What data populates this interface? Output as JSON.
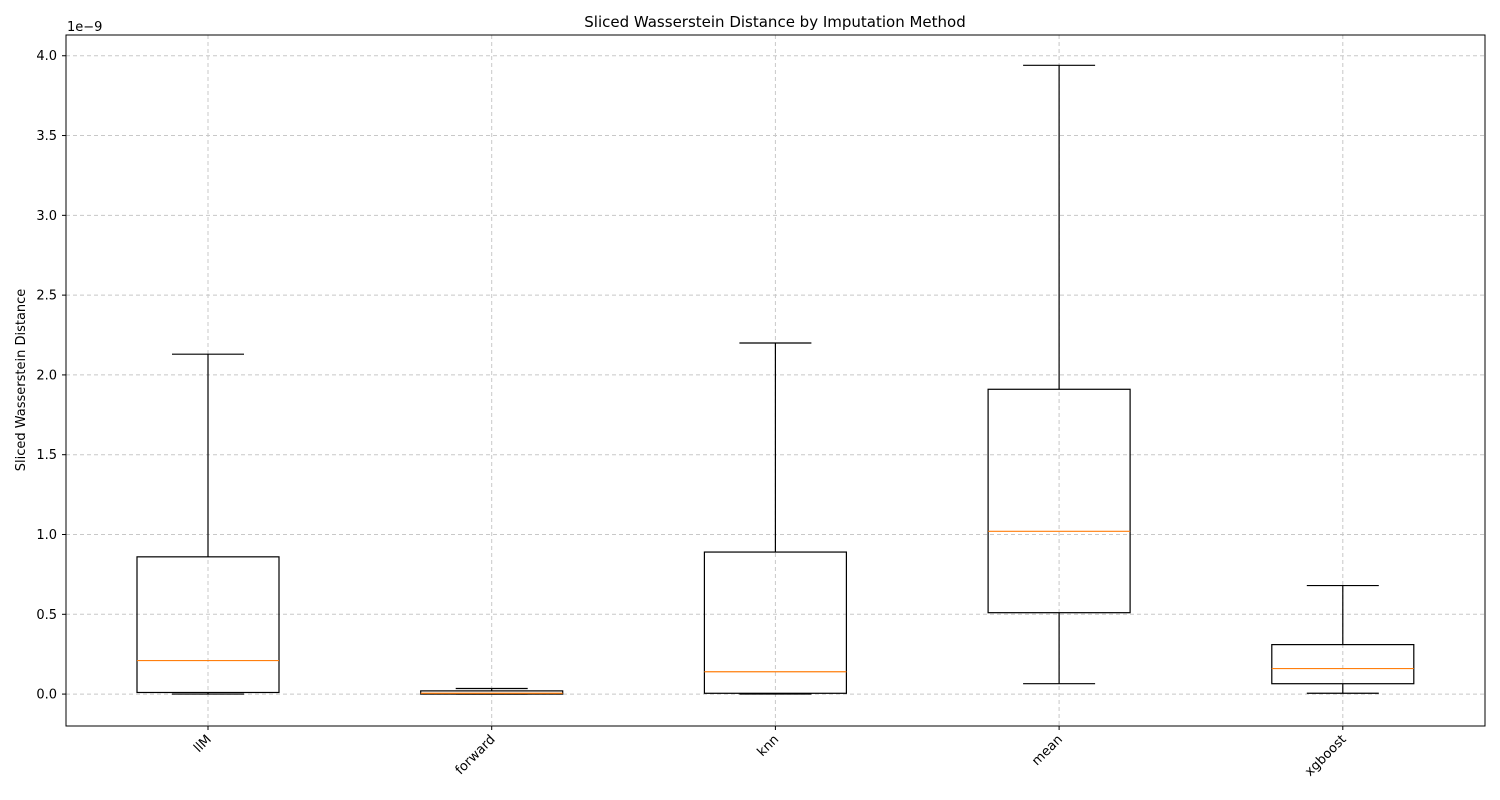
{
  "chart_data": {
    "type": "boxplot",
    "title": "Sliced Wasserstein Distance by Imputation Method",
    "xlabel": "",
    "ylabel": "Sliced Wasserstein Distance",
    "y_scale_label": "1e−9",
    "ylim": [
      -0.2,
      4.13
    ],
    "grid": true,
    "categories": [
      "llM",
      "forward",
      "knn",
      "mean",
      "xgboost"
    ],
    "boxes": [
      {
        "category": "llM",
        "whisker_low": 0.0,
        "q1": 0.01,
        "median": 0.21,
        "q3": 0.86,
        "whisker_high": 2.13
      },
      {
        "category": "forward",
        "whisker_low": 0.0,
        "q1": 0.0,
        "median": 0.005,
        "q3": 0.02,
        "whisker_high": 0.035
      },
      {
        "category": "knn",
        "whisker_low": 0.0,
        "q1": 0.005,
        "median": 0.14,
        "q3": 0.89,
        "whisker_high": 2.2
      },
      {
        "category": "mean",
        "whisker_low": 0.065,
        "q1": 0.51,
        "median": 1.02,
        "q3": 1.91,
        "whisker_high": 3.94
      },
      {
        "category": "xgboost",
        "whisker_low": 0.005,
        "q1": 0.065,
        "median": 0.16,
        "q3": 0.31,
        "whisker_high": 0.68
      }
    ],
    "yticks": [
      "0.0",
      "0.5",
      "1.0",
      "1.5",
      "2.0",
      "2.5",
      "3.0",
      "3.5",
      "4.0"
    ],
    "colors": {
      "box": "#000000",
      "median": "#ff7f0e",
      "grid": "#c8c8c8"
    }
  }
}
